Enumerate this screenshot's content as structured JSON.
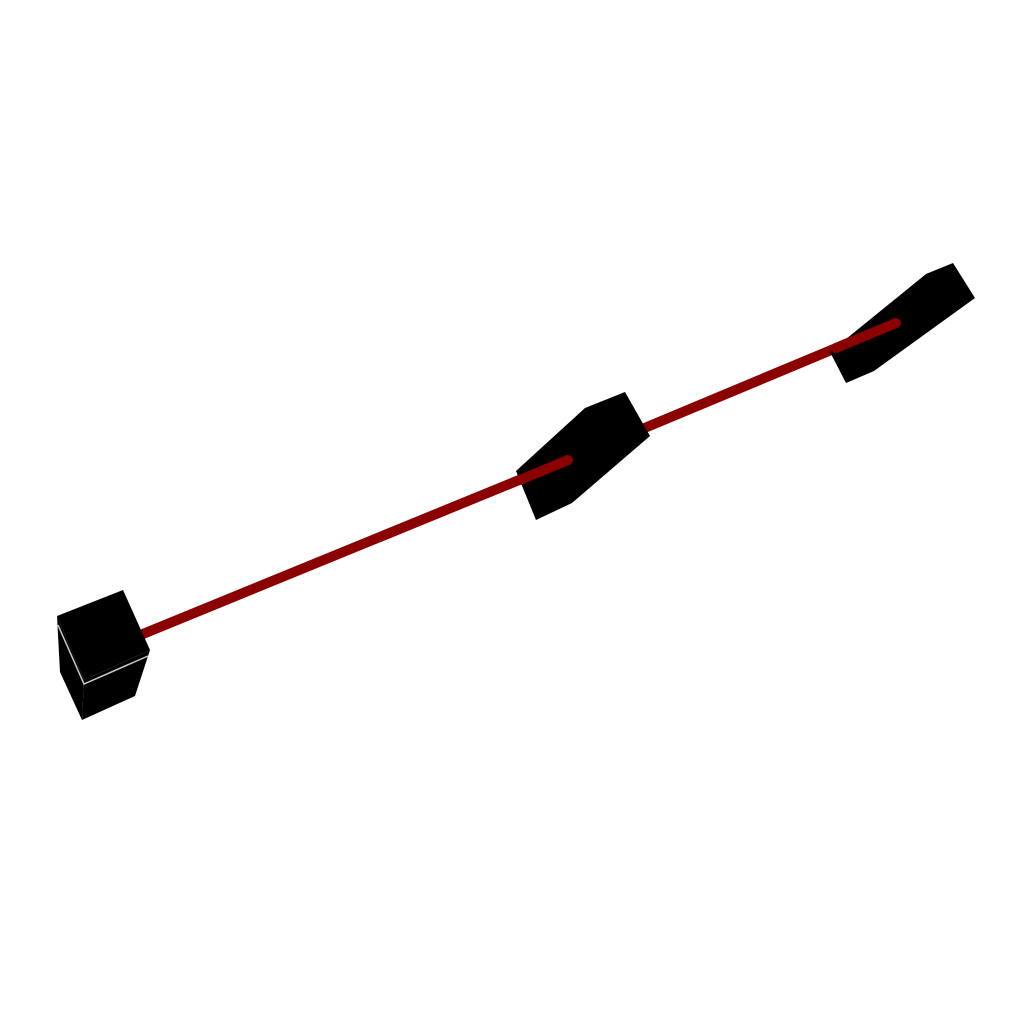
{
  "scene": {
    "background": "#ffffff",
    "link_color": "#8b0000",
    "block_color": "#000000",
    "edge_highlight": "#c8c8c8",
    "blocks": [
      {
        "id": "base"
      },
      {
        "id": "middle"
      },
      {
        "id": "end"
      }
    ],
    "links": [
      {
        "from": "base",
        "to": "middle"
      },
      {
        "from": "middle",
        "to": "end"
      }
    ]
  }
}
